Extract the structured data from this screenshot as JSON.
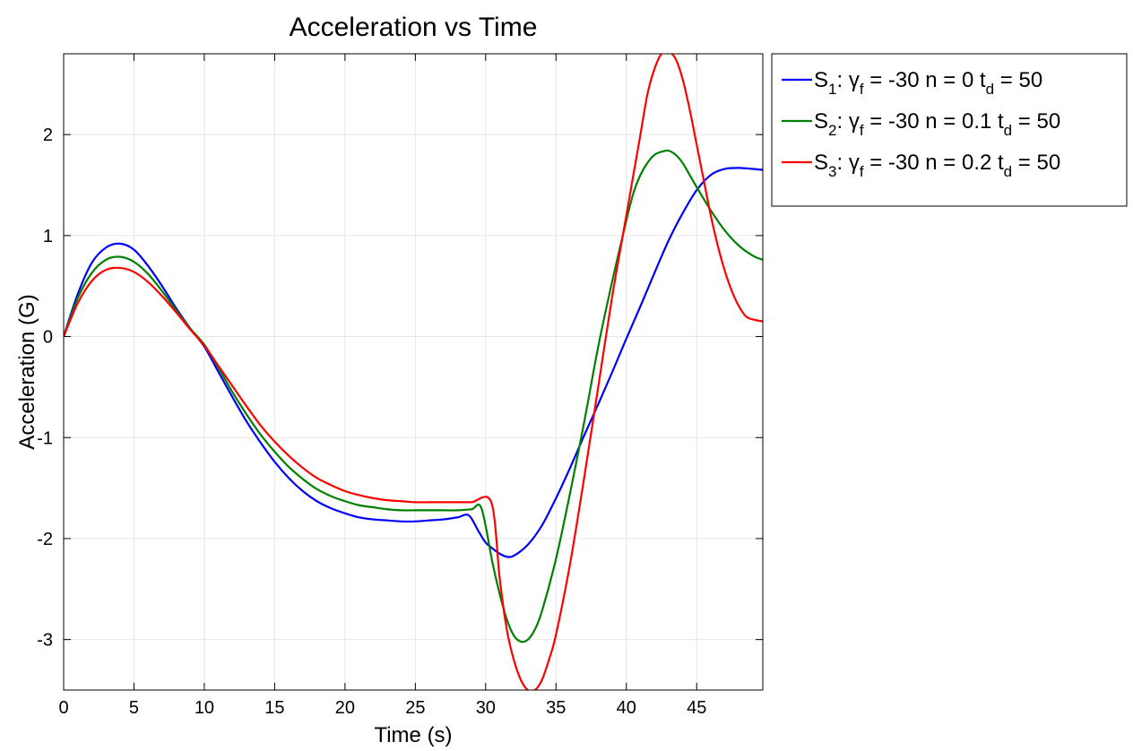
{
  "chart_data": {
    "type": "line",
    "title": "Acceleration vs Time",
    "xlabel": "Time (s)",
    "ylabel": "Acceleration (G)",
    "xlim": [
      0,
      49.7
    ],
    "ylim": [
      -3.5,
      2.8
    ],
    "xticks": [
      0,
      5,
      10,
      15,
      20,
      25,
      30,
      35,
      40,
      45
    ],
    "yticks": [
      -3,
      -2,
      -1,
      0,
      1,
      2
    ],
    "grid": true,
    "legend_position": "outside-right-top",
    "series": [
      {
        "name": "S1: γf = -30 n = 0 td = 50",
        "legend": {
          "sym": "S",
          "sym_sub": "1",
          "greek": "γ",
          "greek_sub": "f",
          "mid": " = -30 n = 0 t",
          "t_sub": "d",
          "tail": " = 50"
        },
        "color": "#0000ff",
        "x": [
          0,
          1,
          2,
          3,
          4,
          5,
          6,
          7,
          8,
          9,
          10,
          11,
          12,
          13,
          14,
          15,
          16,
          17,
          18,
          19,
          20,
          21,
          22,
          23,
          24,
          25,
          26,
          27,
          28,
          28.8,
          29.5,
          30,
          30.5,
          31,
          31.5,
          32,
          33,
          34,
          35,
          36,
          37,
          38,
          39,
          40,
          41,
          42,
          43,
          44,
          45,
          46,
          47,
          48,
          49,
          49.7
        ],
        "y": [
          0,
          0.42,
          0.73,
          0.88,
          0.92,
          0.86,
          0.7,
          0.5,
          0.28,
          0.08,
          -0.1,
          -0.35,
          -0.6,
          -0.84,
          -1.05,
          -1.24,
          -1.4,
          -1.53,
          -1.63,
          -1.7,
          -1.75,
          -1.79,
          -1.81,
          -1.82,
          -1.83,
          -1.83,
          -1.82,
          -1.81,
          -1.79,
          -1.77,
          -1.93,
          -2.04,
          -2.1,
          -2.15,
          -2.18,
          -2.17,
          -2.06,
          -1.87,
          -1.6,
          -1.3,
          -0.98,
          -0.67,
          -0.35,
          -0.02,
          0.3,
          0.63,
          0.95,
          1.22,
          1.45,
          1.6,
          1.66,
          1.67,
          1.66,
          1.65
        ]
      },
      {
        "name": "S2: γf = -30 n = 0.1 td = 50",
        "legend": {
          "sym": "S",
          "sym_sub": "2",
          "greek": "γ",
          "greek_sub": "f",
          "mid": " = -30 n = 0.1 t",
          "t_sub": "d",
          "tail": " = 50"
        },
        "color": "#008000",
        "x": [
          0,
          1,
          2,
          3,
          4,
          5,
          6,
          7,
          8,
          9,
          10,
          11,
          12,
          13,
          14,
          15,
          16,
          17,
          18,
          19,
          20,
          21,
          22,
          23,
          24,
          25,
          26,
          27,
          28,
          29,
          29.7,
          30.5,
          31,
          31.5,
          32,
          32.5,
          33,
          33.5,
          34,
          35,
          36,
          37,
          38,
          39,
          40,
          40.5,
          41,
          41.5,
          42,
          42.5,
          43,
          43.5,
          44,
          44.5,
          45,
          46,
          47,
          48,
          49,
          49.7
        ],
        "y": [
          0,
          0.38,
          0.63,
          0.76,
          0.79,
          0.74,
          0.62,
          0.45,
          0.26,
          0.08,
          -0.08,
          -0.31,
          -0.55,
          -0.77,
          -0.97,
          -1.14,
          -1.29,
          -1.41,
          -1.51,
          -1.58,
          -1.63,
          -1.67,
          -1.69,
          -1.71,
          -1.72,
          -1.72,
          -1.72,
          -1.72,
          -1.72,
          -1.71,
          -1.7,
          -2.25,
          -2.55,
          -2.8,
          -2.96,
          -3.02,
          -3.0,
          -2.9,
          -2.72,
          -2.2,
          -1.55,
          -0.85,
          -0.1,
          0.55,
          1.15,
          1.42,
          1.6,
          1.72,
          1.8,
          1.83,
          1.84,
          1.8,
          1.72,
          1.6,
          1.48,
          1.25,
          1.05,
          0.9,
          0.8,
          0.76
        ]
      },
      {
        "name": "S3: γf = -30 n = 0.2 td = 50",
        "legend": {
          "sym": "S",
          "sym_sub": "3",
          "greek": "γ",
          "greek_sub": "f",
          "mid": " = -30 n = 0.2 t",
          "t_sub": "d",
          "tail": " = 50"
        },
        "color": "#ff0000",
        "x": [
          0,
          1,
          2,
          3,
          4,
          5,
          6,
          7,
          8,
          9,
          10,
          11,
          12,
          13,
          14,
          15,
          16,
          17,
          18,
          19,
          20,
          21,
          22,
          23,
          24,
          25,
          26,
          27,
          28,
          29,
          30.4,
          31,
          31.5,
          32,
          32.5,
          33,
          33.5,
          34,
          34.5,
          35,
          36,
          37,
          38,
          39,
          40,
          40.5,
          41,
          41.5,
          42,
          42.5,
          43,
          43.5,
          44,
          44.5,
          45,
          45.5,
          46,
          46.5,
          47,
          47.5,
          48,
          48.5,
          49,
          49.7
        ],
        "y": [
          0,
          0.33,
          0.55,
          0.66,
          0.68,
          0.64,
          0.54,
          0.4,
          0.24,
          0.07,
          -0.09,
          -0.29,
          -0.49,
          -0.69,
          -0.88,
          -1.04,
          -1.18,
          -1.3,
          -1.4,
          -1.47,
          -1.53,
          -1.57,
          -1.6,
          -1.62,
          -1.63,
          -1.64,
          -1.64,
          -1.64,
          -1.64,
          -1.64,
          -1.64,
          -2.4,
          -2.9,
          -3.2,
          -3.4,
          -3.5,
          -3.5,
          -3.4,
          -3.2,
          -2.95,
          -2.25,
          -1.4,
          -0.5,
          0.4,
          1.2,
          1.6,
          2.0,
          2.4,
          2.65,
          2.8,
          2.82,
          2.75,
          2.55,
          2.25,
          1.9,
          1.55,
          1.2,
          0.9,
          0.65,
          0.45,
          0.3,
          0.2,
          0.17,
          0.15
        ]
      }
    ]
  }
}
